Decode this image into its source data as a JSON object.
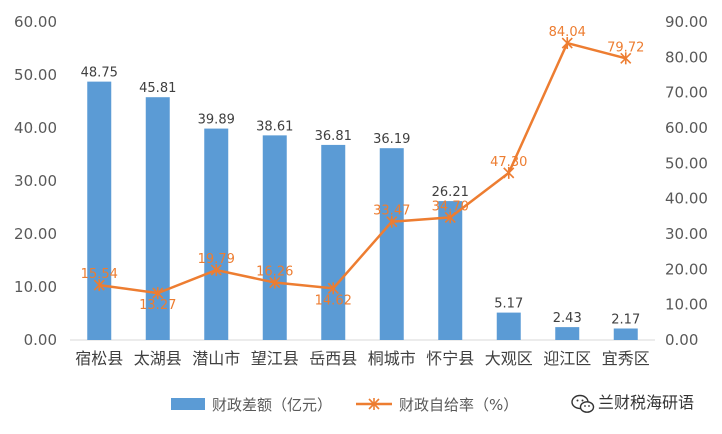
{
  "chart_data": {
    "type": "bar",
    "categories": [
      "宿松县",
      "太湖县",
      "潜山市",
      "望江县",
      "岳西县",
      "桐城市",
      "怀宁县",
      "大观区",
      "迎江区",
      "宜秀区"
    ],
    "series": [
      {
        "name": "财政差额（亿元）",
        "type": "bar",
        "axis": "left",
        "color": "#5B9BD5",
        "values": [
          48.75,
          45.81,
          39.89,
          38.61,
          36.81,
          36.19,
          26.21,
          5.17,
          2.43,
          2.17
        ],
        "labels": [
          "48.75",
          "45.81",
          "39.89",
          "38.61",
          "36.81",
          "36.19",
          "26.21",
          "5.17",
          "2.43",
          "2.17"
        ]
      },
      {
        "name": "财政自给率（%）",
        "type": "line",
        "axis": "right",
        "color": "#ED7D31",
        "values": [
          15.54,
          13.27,
          19.79,
          16.26,
          14.62,
          33.47,
          34.7,
          47.3,
          84.04,
          79.72
        ],
        "labels": [
          "15.54",
          "13.27",
          "19.79",
          "16.26",
          "14.62",
          "33.47",
          "34.70",
          "47.30",
          "84.04",
          "79.72"
        ]
      }
    ],
    "y_left": {
      "ylim": [
        0,
        60
      ],
      "ticks": [
        "0.00",
        "10.00",
        "20.00",
        "30.00",
        "40.00",
        "50.00",
        "60.00"
      ]
    },
    "y_right": {
      "ylim": [
        0,
        90
      ],
      "ticks": [
        "0.00",
        "10.00",
        "20.00",
        "30.00",
        "40.00",
        "50.00",
        "60.00",
        "70.00",
        "80.00",
        "90.00"
      ]
    },
    "grid": false,
    "legend": "bottom"
  },
  "watermark": {
    "text": "兰财税海研语",
    "icon": "wechat-icon"
  }
}
